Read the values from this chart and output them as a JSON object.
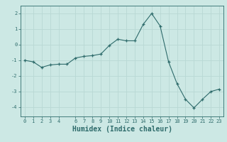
{
  "x": [
    0,
    1,
    2,
    3,
    4,
    5,
    6,
    7,
    8,
    9,
    10,
    11,
    12,
    13,
    14,
    15,
    16,
    17,
    18,
    19,
    20,
    21,
    22,
    23
  ],
  "y": [
    -1.0,
    -1.1,
    -1.45,
    -1.3,
    -1.25,
    -1.25,
    -0.85,
    -0.75,
    -0.7,
    -0.6,
    -0.05,
    0.35,
    0.25,
    0.25,
    1.3,
    2.0,
    1.2,
    -1.1,
    -2.5,
    -3.5,
    -4.05,
    -3.5,
    -3.0,
    -2.85
  ],
  "line_color": "#2e6b6b",
  "marker": "+",
  "bg_color": "#cce8e4",
  "grid_color": "#b8d8d4",
  "tick_color": "#2e6b6b",
  "xlabel": "Humidex (Indice chaleur)",
  "xlim": [
    -0.5,
    23.5
  ],
  "ylim": [
    -4.6,
    2.5
  ],
  "yticks": [
    2,
    1,
    0,
    -1,
    -2,
    -3,
    -4
  ],
  "xticks": [
    0,
    1,
    2,
    3,
    4,
    6,
    7,
    8,
    9,
    10,
    11,
    12,
    13,
    14,
    15,
    16,
    17,
    18,
    19,
    20,
    21,
    22,
    23
  ],
  "xlabel_fontsize": 7,
  "tick_fontsize": 5
}
